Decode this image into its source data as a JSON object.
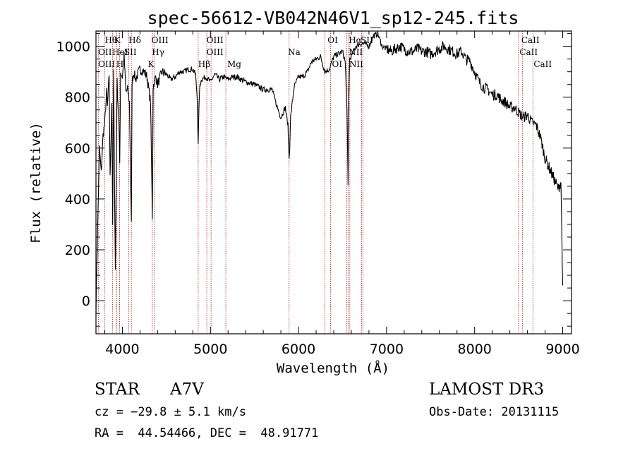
{
  "chart_data": {
    "type": "line",
    "title": "spec-56612-VB042N46V1_sp12-245.fits",
    "xlabel": "Wavelength (Å)",
    "ylabel": "Flux (relative)",
    "xlim": [
      3700,
      9100
    ],
    "ylim": [
      -130,
      1060
    ],
    "xticks": [
      4000,
      5000,
      6000,
      7000,
      8000,
      9000
    ],
    "yticks": [
      0,
      200,
      400,
      600,
      800,
      1000
    ],
    "grid": false,
    "line_color": "#000000",
    "marker_color": "#b22222",
    "spectrum": {
      "x": [
        3700,
        3720,
        3740,
        3760,
        3780,
        3800,
        3820,
        3830,
        3850,
        3860,
        3880,
        3890,
        3900,
        3920,
        3940,
        3960,
        3970,
        3980,
        4000,
        4020,
        4040,
        4060,
        4080,
        4102,
        4110,
        4130,
        4150,
        4200,
        4250,
        4280,
        4300,
        4320,
        4340,
        4350,
        4360,
        4380,
        4400,
        4450,
        4500,
        4550,
        4600,
        4650,
        4700,
        4750,
        4800,
        4830,
        4850,
        4861,
        4870,
        4880,
        4900,
        4950,
        5000,
        5050,
        5100,
        5150,
        5200,
        5250,
        5300,
        5400,
        5500,
        5600,
        5700,
        5750,
        5800,
        5850,
        5880,
        5893,
        5900,
        5910,
        5950,
        6000,
        6050,
        6100,
        6150,
        6200,
        6250,
        6300,
        6350,
        6400,
        6450,
        6500,
        6530,
        6550,
        6563,
        6570,
        6580,
        6600,
        6650,
        6700,
        6750,
        6800,
        6850,
        6900,
        6950,
        7000,
        7050,
        7100,
        7150,
        7200,
        7250,
        7300,
        7350,
        7400,
        7450,
        7500,
        7550,
        7600,
        7650,
        7700,
        7750,
        7800,
        7850,
        7900,
        7950,
        8000,
        8050,
        8100,
        8150,
        8200,
        8250,
        8300,
        8350,
        8400,
        8450,
        8500,
        8550,
        8600,
        8650,
        8700,
        8750,
        8800,
        8850,
        8900,
        8950,
        8980,
        9000
      ],
      "y": [
        -40,
        300,
        600,
        500,
        650,
        700,
        820,
        760,
        890,
        480,
        780,
        280,
        900,
        120,
        860,
        700,
        540,
        900,
        880,
        960,
        820,
        830,
        780,
        300,
        860,
        900,
        870,
        910,
        900,
        880,
        830,
        780,
        330,
        840,
        860,
        880,
        850,
        900,
        890,
        870,
        880,
        900,
        900,
        910,
        910,
        890,
        800,
        610,
        770,
        850,
        870,
        880,
        860,
        890,
        870,
        880,
        870,
        880,
        880,
        860,
        850,
        830,
        830,
        770,
        720,
        760,
        690,
        560,
        600,
        720,
        840,
        880,
        880,
        900,
        940,
        950,
        960,
        900,
        910,
        960,
        970,
        980,
        940,
        750,
        450,
        780,
        950,
        960,
        1000,
        1010,
        1010,
        1000,
        1040,
        1050,
        1000,
        990,
        980,
        990,
        1000,
        990,
        980,
        980,
        990,
        980,
        980,
        970,
        980,
        990,
        1000,
        990,
        980,
        970,
        980,
        950,
        940,
        900,
        860,
        840,
        830,
        810,
        810,
        790,
        780,
        760,
        760,
        740,
        720,
        730,
        700,
        690,
        640,
        560,
        520,
        480,
        440,
        470,
        60
      ]
    },
    "lines": [
      {
        "name": "CaII",
        "wave": 3934
      },
      {
        "name": "K",
        "wave": 3934
      },
      {
        "name": "CaII",
        "wave": 3969
      },
      {
        "name": "H",
        "wave": 3969
      },
      {
        "name": "Hδ",
        "wave": 4102
      },
      {
        "name": "Hγ",
        "wave": 4340
      },
      {
        "name": "Hβ",
        "wave": 4861
      },
      {
        "name": "Mg",
        "wave": 5175
      },
      {
        "name": "Na",
        "wave": 5893
      },
      {
        "name": "Hα",
        "wave": 6563
      },
      {
        "name": "OII",
        "wave": 3727
      },
      {
        "name": "Hθ",
        "wave": 3798
      },
      {
        "name": "OIII",
        "wave": 4363
      },
      {
        "name": "OIII",
        "wave": 4959
      },
      {
        "name": "OIII",
        "wave": 5007
      },
      {
        "name": "OI",
        "wave": 6300
      },
      {
        "name": "OI",
        "wave": 6364
      },
      {
        "name": "NII",
        "wave": 6548
      },
      {
        "name": "NII",
        "wave": 6583
      },
      {
        "name": "SII",
        "wave": 6716
      },
      {
        "name": "SII",
        "wave": 6731
      },
      {
        "name": "CaII",
        "wave": 8498
      },
      {
        "name": "CaII",
        "wave": 8542
      },
      {
        "name": "CaII",
        "wave": 8662
      },
      {
        "name": "HeI",
        "wave": 3889
      },
      {
        "name": "SII",
        "wave": 4072
      }
    ],
    "line_labels": [
      {
        "text": "Hθ",
        "wave": 3800,
        "row": 1
      },
      {
        "text": "K",
        "wave": 3905,
        "row": 1
      },
      {
        "text": "Hδ",
        "wave": 4070,
        "row": 1
      },
      {
        "text": "OIII",
        "wave": 4330,
        "row": 1
      },
      {
        "text": "OIII",
        "wave": 4955,
        "row": 1
      },
      {
        "text": "OI",
        "wave": 6330,
        "row": 1
      },
      {
        "text": "Hα",
        "wave": 6570,
        "row": 1
      },
      {
        "text": "SII",
        "wave": 6705,
        "row": 1
      },
      {
        "text": "CaII",
        "wave": 8530,
        "row": 1
      },
      {
        "text": "OII",
        "wave": 3725,
        "row": 2
      },
      {
        "text": "HeI",
        "wave": 3885,
        "row": 2
      },
      {
        "text": "SII",
        "wave": 4020,
        "row": 2
      },
      {
        "text": "Hγ",
        "wave": 4335,
        "row": 2
      },
      {
        "text": "OIII",
        "wave": 4955,
        "row": 2
      },
      {
        "text": "Na",
        "wave": 5880,
        "row": 2
      },
      {
        "text": "NII",
        "wave": 6570,
        "row": 2
      },
      {
        "text": "CaII",
        "wave": 8510,
        "row": 2
      },
      {
        "text": "OIII",
        "wave": 3725,
        "row": 3
      },
      {
        "text": "H",
        "wave": 3930,
        "row": 3
      },
      {
        "text": "K",
        "wave": 4290,
        "row": 3
      },
      {
        "text": "Hβ",
        "wave": 4860,
        "row": 3
      },
      {
        "text": "Mg",
        "wave": 5190,
        "row": 3
      },
      {
        "text": "OI",
        "wave": 6380,
        "row": 3
      },
      {
        "text": "NII",
        "wave": 6575,
        "row": 3
      },
      {
        "text": "CaII",
        "wave": 8670,
        "row": 3
      }
    ]
  },
  "info": {
    "class": "STAR",
    "subclass": "A7V",
    "survey": "LAMOST DR3",
    "cz": "cz = −29.8 ± 5.1 km/s",
    "obs_date": "Obs-Date: 20131115",
    "radec": "RA =  44.54466, DEC =  48.91771"
  }
}
